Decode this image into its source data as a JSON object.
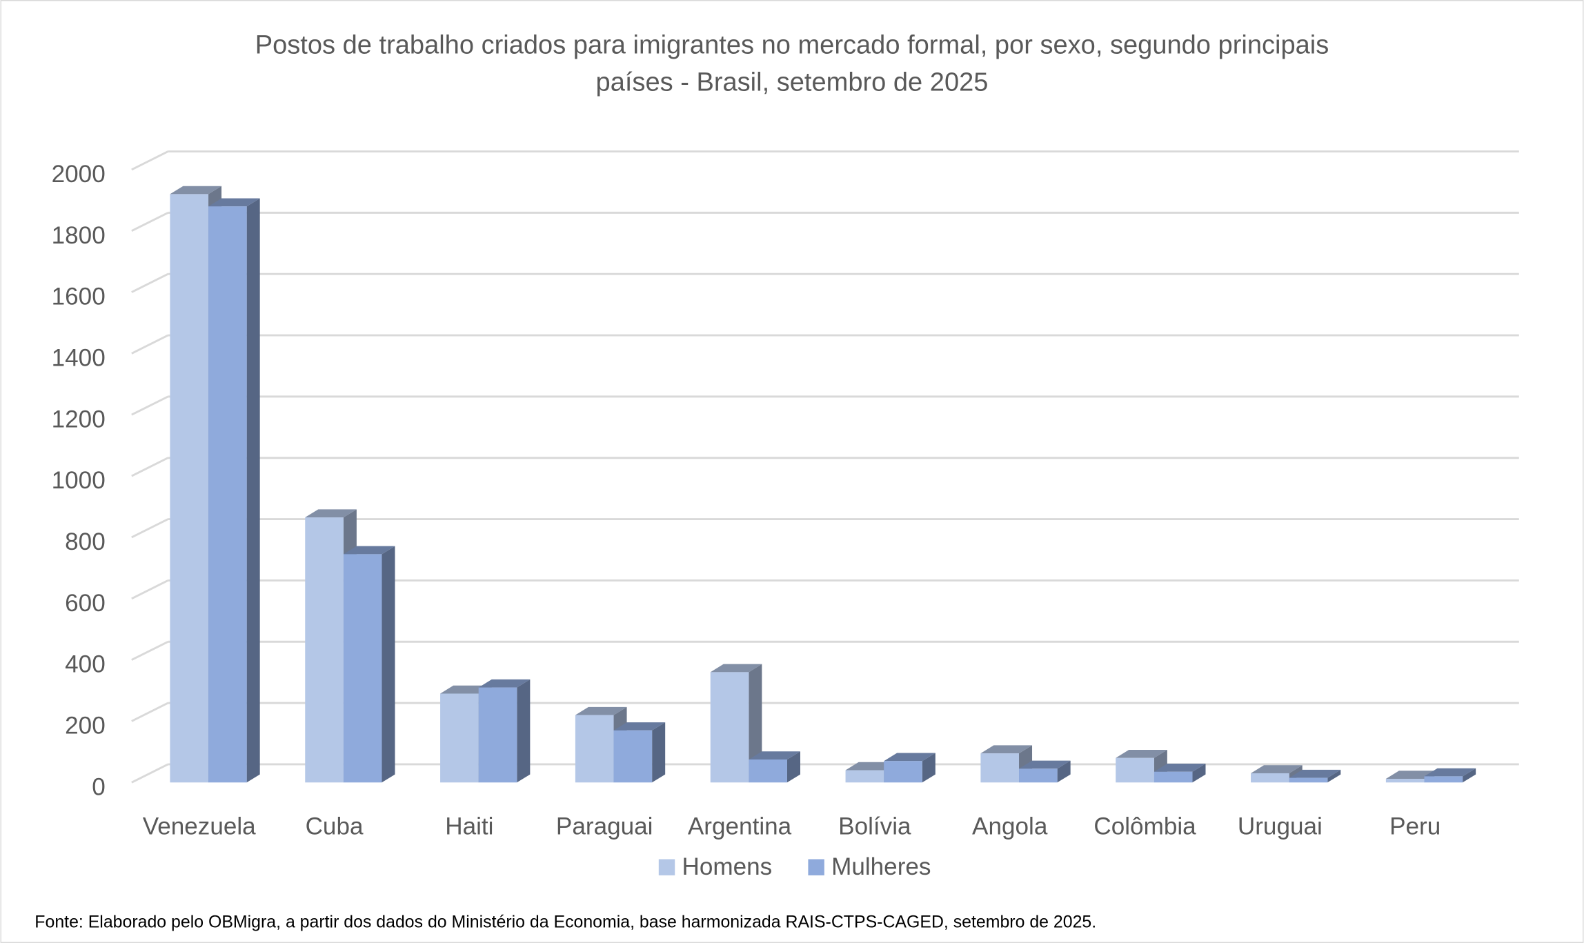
{
  "chart_data": {
    "type": "bar3d",
    "title": [
      "Postos de trabalho criados para imigrantes no mercado formal, por sexo, segundo principais",
      "países - Brasil, setembro de 2025"
    ],
    "categories": [
      "Venezuela",
      "Cuba",
      "Haiti",
      "Paraguai",
      "Argentina",
      "Bolívia",
      "Angola",
      "Colômbia",
      "Uruguai",
      "Peru"
    ],
    "series": [
      {
        "name": "Homens",
        "color": "#b4c7e7",
        "values": [
          1920,
          865,
          290,
          220,
          360,
          40,
          95,
          80,
          30,
          12
        ]
      },
      {
        "name": "Mulheres",
        "color": "#8faadc",
        "values": [
          1880,
          745,
          310,
          170,
          75,
          70,
          45,
          35,
          15,
          20
        ]
      }
    ],
    "ylim": [
      0,
      2000
    ],
    "yticks": [
      0,
      200,
      400,
      600,
      800,
      1000,
      1200,
      1400,
      1600,
      1800,
      2000
    ],
    "grid": true,
    "legend": "bottom",
    "source": "Fonte: Elaborado pelo OBMigra, a partir dos dados do Ministério da Economia, base harmonizada RAIS-CTPS-CAGED, setembro de 2025."
  }
}
